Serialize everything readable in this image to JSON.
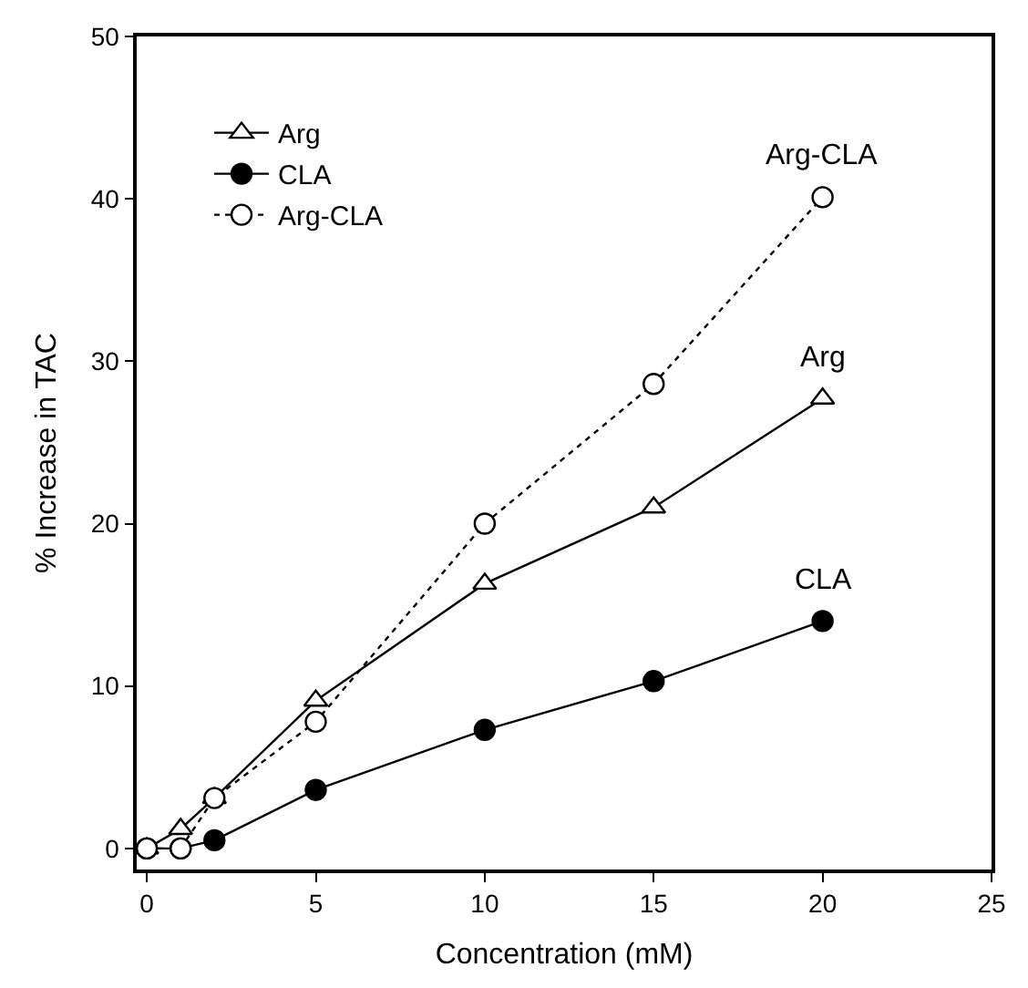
{
  "chart_data": {
    "type": "line",
    "xlabel": "Concentration (mM)",
    "ylabel": "% Increase in TAC",
    "xlim": [
      -0.3,
      25
    ],
    "xticks": [
      0,
      5,
      10,
      15,
      20,
      25
    ],
    "ylim": [
      -1.3,
      50
    ],
    "yticks": [
      0,
      10,
      20,
      30,
      40,
      50
    ],
    "legend": "top left",
    "series": [
      {
        "name": "Arg",
        "color": "#000000",
        "colors": [
          "#ffffff",
          "#ffffff",
          "#ffffff",
          "#ffffff",
          "#ffffff",
          "#ffffff",
          "#ffffff"
        ],
        "marker": "triangle",
        "line_style": "solid",
        "x": [
          0,
          1,
          2,
          5,
          10,
          15,
          20
        ],
        "values": [
          0,
          1.2,
          3.1,
          9.1,
          16.3,
          21,
          27.7
        ]
      },
      {
        "name": "CLA",
        "color": "#000000",
        "marker": "circle",
        "line_style": "solid",
        "x": [
          0,
          1,
          2,
          5,
          10,
          15,
          20
        ],
        "values": [
          0,
          0,
          0.5,
          3.6,
          7.3,
          10.3,
          14
        ]
      },
      {
        "name": "Arg-CLA",
        "color": "#000000",
        "colors": [
          "#ffffff",
          "#ffffff",
          "#ffffff",
          "#ffffff",
          "#ffffff",
          "#ffffff",
          "#ffffff"
        ],
        "marker": "circle",
        "line_style": "dotted",
        "x": [
          0,
          1,
          2,
          5,
          10,
          15,
          20
        ],
        "values": [
          0,
          0,
          3.1,
          7.8,
          20,
          28.6,
          40.1
        ]
      }
    ],
    "annotations": [
      "Arg",
      "CLA",
      "Arg-CLA"
    ]
  }
}
